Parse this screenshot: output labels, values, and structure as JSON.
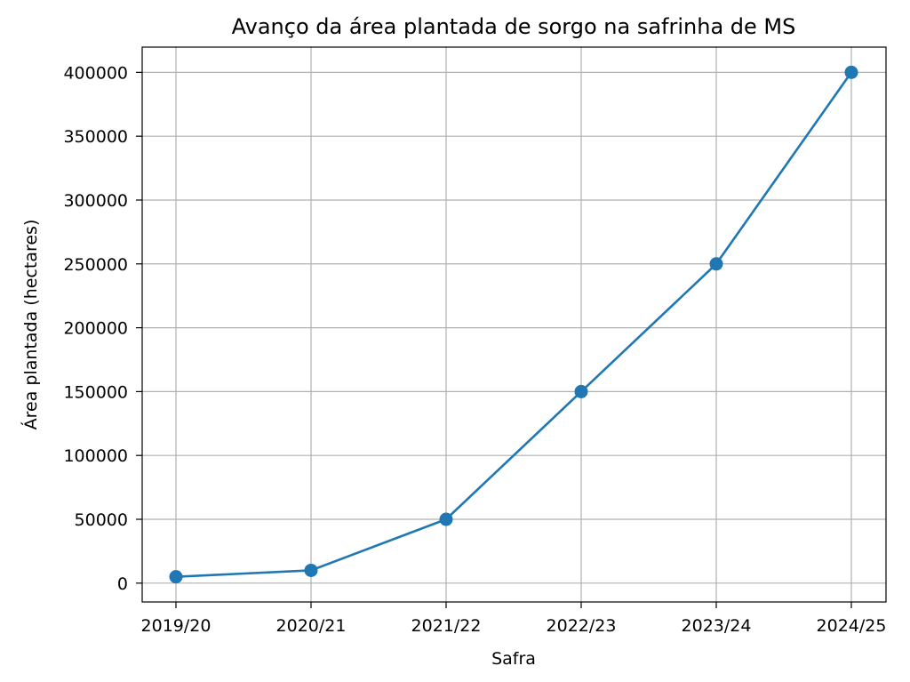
{
  "chart_data": {
    "type": "line",
    "title": "Avanço da área plantada de sorgo na safrinha de MS",
    "xlabel": "Safra",
    "ylabel": "Área plantada (hectares)",
    "categories": [
      "2019/20",
      "2020/21",
      "2021/22",
      "2022/23",
      "2023/24",
      "2024/25"
    ],
    "series": [
      {
        "values": [
          5000,
          10000,
          50000,
          150000,
          250000,
          400000
        ]
      }
    ],
    "yticks": [
      0,
      50000,
      100000,
      150000,
      200000,
      250000,
      300000,
      350000,
      400000
    ],
    "ylim": [
      -14750,
      419750
    ],
    "grid": true,
    "marker": "circle",
    "line_color": "#1f77b4"
  }
}
